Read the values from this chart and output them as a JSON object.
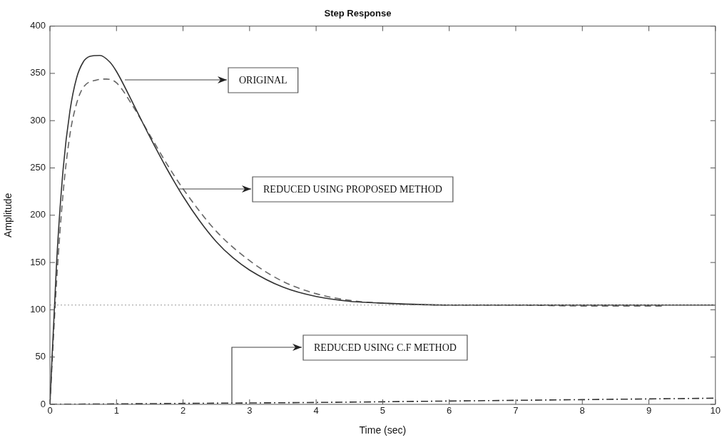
{
  "chart_data": {
    "type": "line",
    "title": "Step Response",
    "xlabel": "Time (sec)",
    "ylabel": "Amplitude",
    "xlim": [
      0,
      10
    ],
    "xticks": [
      0,
      1,
      2,
      3,
      4,
      5,
      6,
      7,
      8,
      9,
      10
    ],
    "ylim": [
      0,
      400
    ],
    "yticks": [
      0,
      50,
      100,
      150,
      200,
      250,
      300,
      350,
      400
    ],
    "grid": false,
    "legend": false,
    "marker": "none",
    "series": [
      {
        "color": "#333333",
        "line_style": "solid",
        "x": [
          0,
          0.1,
          0.2,
          0.3,
          0.4,
          0.5,
          0.6,
          0.75,
          0.9,
          1.0,
          1.25,
          1.5,
          1.75,
          2.0,
          2.25,
          2.5,
          2.75,
          3.0,
          3.5,
          4.0,
          4.5,
          5.0,
          6,
          7,
          8,
          9,
          10
        ],
        "values": [
          0,
          150,
          250,
          310,
          345,
          362,
          368,
          369,
          362,
          352,
          318,
          283,
          250,
          220,
          194,
          172,
          155,
          142,
          124,
          114,
          109,
          107,
          105,
          105,
          105,
          105,
          105
        ]
      },
      {
        "color": "#666666",
        "line_style": "dashed",
        "x": [
          0,
          0.1,
          0.2,
          0.3,
          0.4,
          0.5,
          0.7,
          0.85,
          1.0,
          1.25,
          1.5,
          1.75,
          2.0,
          2.5,
          3.0,
          3.5,
          4.0,
          4.5,
          5.0,
          6,
          7,
          8,
          9.2
        ],
        "values": [
          0,
          130,
          225,
          285,
          318,
          335,
          343,
          344,
          340,
          315,
          285,
          255,
          228,
          183,
          152,
          130,
          117,
          110,
          107,
          105,
          105,
          104,
          104
        ]
      },
      {
        "color": "#333333",
        "line_style": "dashdot",
        "x": [
          0,
          2,
          4,
          6,
          8,
          10
        ],
        "values": [
          0,
          1,
          2,
          3.5,
          5,
          6.5
        ]
      }
    ],
    "ref_lines": [
      {
        "axis": "y",
        "value": 105,
        "color": "#999999",
        "line_style": "dotted"
      }
    ],
    "annotations": [
      "ORIGINAL",
      "REDUCED USING PROPOSED METHOD",
      "REDUCED USING C.F METHOD"
    ]
  }
}
